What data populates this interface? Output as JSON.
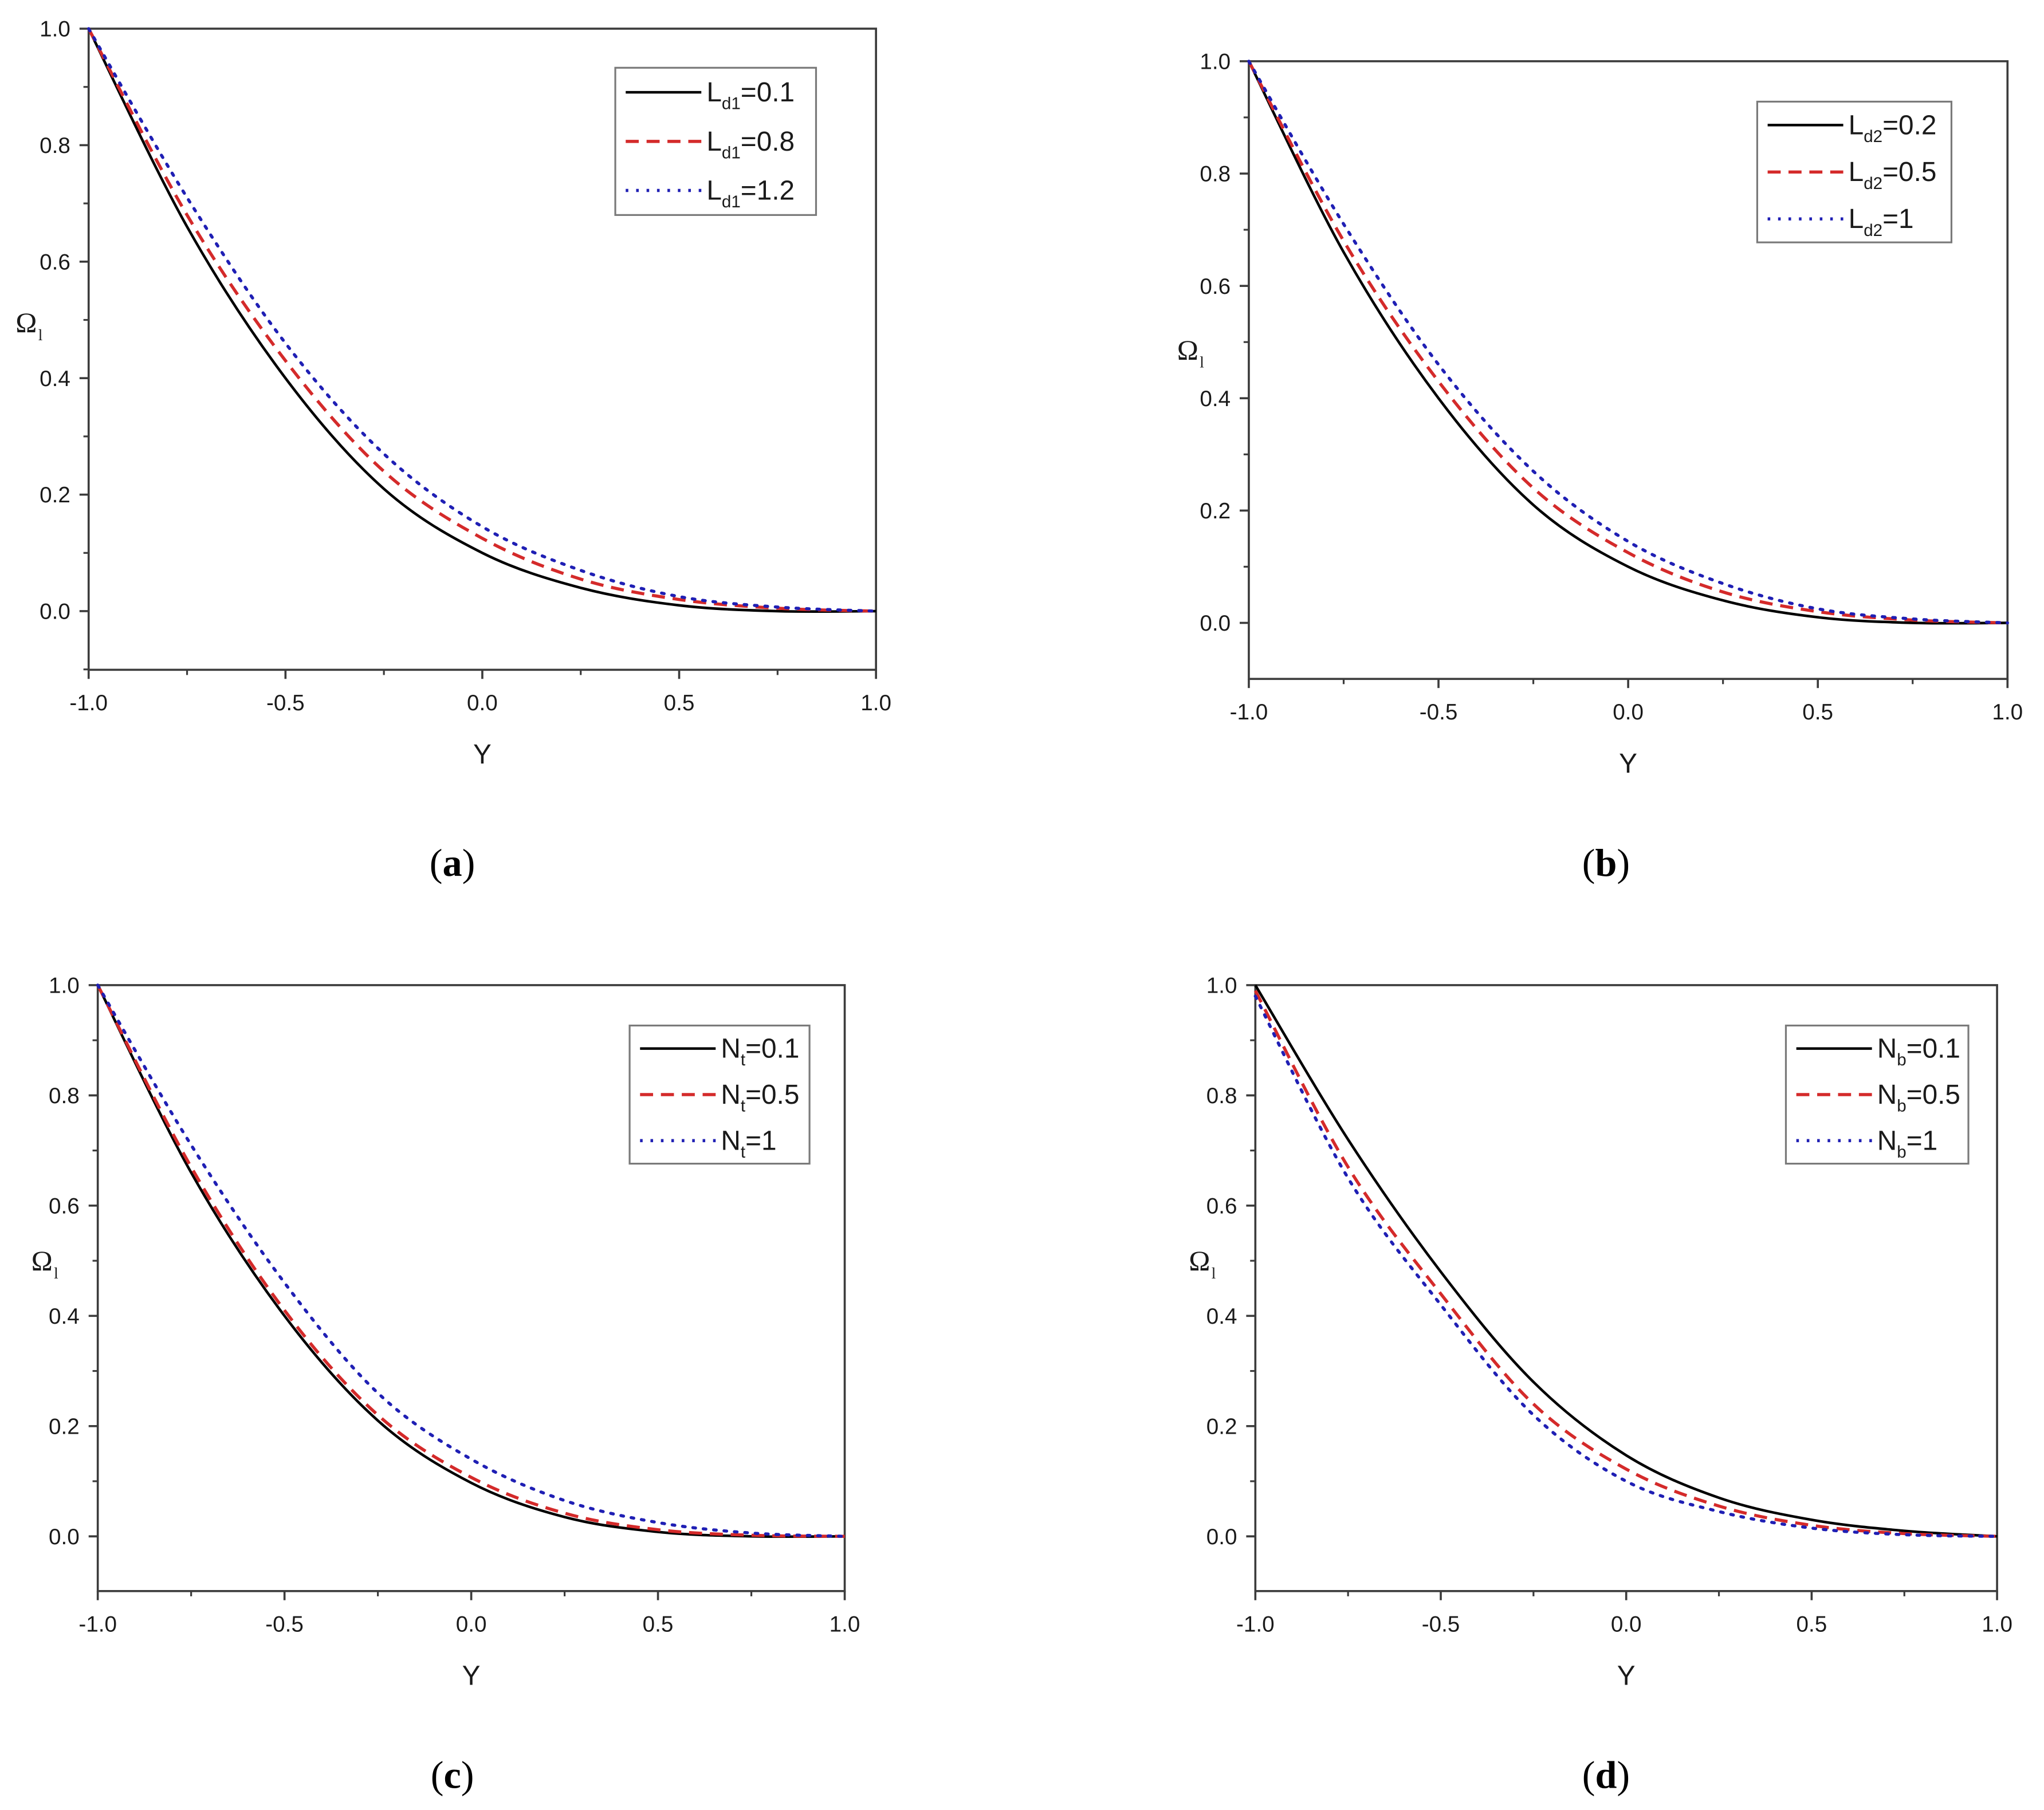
{
  "figure": {
    "panels": [
      {
        "id": "a",
        "caption_letter": "a",
        "xlabel": "Y",
        "ylabel_main": "Ω",
        "ylabel_sub": "l",
        "legend": [
          {
            "base": "L",
            "sub": "d1",
            "value": "=0.1",
            "style": "solid"
          },
          {
            "base": "L",
            "sub": "d1",
            "value": "=0.8",
            "style": "dashed"
          },
          {
            "base": "L",
            "sub": "d1",
            "value": "=1.2",
            "style": "dotted"
          }
        ]
      },
      {
        "id": "b",
        "caption_letter": "b",
        "xlabel": "Y",
        "ylabel_main": "Ω",
        "ylabel_sub": "l",
        "legend": [
          {
            "base": "L",
            "sub": "d2",
            "value": "=0.2",
            "style": "solid"
          },
          {
            "base": "L",
            "sub": "d2",
            "value": "=0.5",
            "style": "dashed"
          },
          {
            "base": "L",
            "sub": "d2",
            "value": "=1",
            "style": "dotted"
          }
        ]
      },
      {
        "id": "c",
        "caption_letter": "c",
        "xlabel": "Y",
        "ylabel_main": "Ω",
        "ylabel_sub": "l",
        "legend": [
          {
            "base": "N",
            "sub": "t",
            "value": "=0.1",
            "style": "solid"
          },
          {
            "base": "N",
            "sub": "t",
            "value": "=0.5",
            "style": "dashed"
          },
          {
            "base": "N",
            "sub": "t",
            "value": "=1",
            "style": "dotted"
          }
        ]
      },
      {
        "id": "d",
        "caption_letter": "d",
        "xlabel": "Y",
        "ylabel_main": "Ω",
        "ylabel_sub": "l",
        "legend": [
          {
            "base": "N",
            "sub": "b",
            "value": "=0.1",
            "style": "solid"
          },
          {
            "base": "N",
            "sub": "b",
            "value": "=0.5",
            "style": "dashed"
          },
          {
            "base": "N",
            "sub": "b",
            "value": "=1",
            "style": "dotted"
          }
        ]
      }
    ],
    "xticks": [
      "-1.0",
      "-0.5",
      "0.0",
      "0.5",
      "1.0"
    ],
    "yticks": [
      "0.0",
      "0.2",
      "0.4",
      "0.6",
      "0.8",
      "1.0"
    ],
    "colors": {
      "solid": "#000000",
      "dashed": "#d42a2a",
      "dotted": "#1f1fb4",
      "axis": "#3c3c3c",
      "legend_border": "#7a7a7a"
    }
  },
  "chart_data": [
    {
      "type": "line",
      "title": "(a)",
      "xlabel": "Y",
      "ylabel": "Ω_l",
      "xlim": [
        -1.0,
        1.0
      ],
      "ylim": [
        -0.1,
        1.0
      ],
      "grid": false,
      "legend_position": "upper right",
      "x": [
        -1.0,
        -0.75,
        -0.5,
        -0.25,
        0.0,
        0.25,
        0.5,
        0.75,
        1.0
      ],
      "series": [
        {
          "name": "L_d1=0.1",
          "style": "solid",
          "color": "#000000",
          "values": [
            1.0,
            0.66,
            0.4,
            0.21,
            0.1,
            0.04,
            0.01,
            0.0,
            0.0
          ]
        },
        {
          "name": "L_d1=0.8",
          "style": "dashed",
          "color": "#d42a2a",
          "values": [
            1.0,
            0.68,
            0.43,
            0.24,
            0.125,
            0.055,
            0.02,
            0.005,
            0.0
          ]
        },
        {
          "name": "L_d1=1.2",
          "style": "dotted",
          "color": "#1f1fb4",
          "values": [
            1.0,
            0.71,
            0.46,
            0.27,
            0.145,
            0.07,
            0.025,
            0.007,
            0.0
          ]
        }
      ]
    },
    {
      "type": "line",
      "title": "(b)",
      "xlabel": "Y",
      "ylabel": "Ω_l",
      "xlim": [
        -1.0,
        1.0
      ],
      "ylim": [
        -0.1,
        1.0
      ],
      "grid": false,
      "legend_position": "upper right",
      "x": [
        -1.0,
        -0.75,
        -0.5,
        -0.25,
        0.0,
        0.25,
        0.5,
        0.75,
        1.0
      ],
      "series": [
        {
          "name": "L_d2=0.2",
          "style": "solid",
          "color": "#000000",
          "values": [
            1.0,
            0.66,
            0.4,
            0.21,
            0.1,
            0.04,
            0.01,
            0.0,
            0.0
          ]
        },
        {
          "name": "L_d2=0.5",
          "style": "dashed",
          "color": "#d42a2a",
          "values": [
            1.0,
            0.68,
            0.43,
            0.24,
            0.125,
            0.055,
            0.02,
            0.005,
            0.0
          ]
        },
        {
          "name": "L_d2=1",
          "style": "dotted",
          "color": "#1f1fb4",
          "values": [
            1.0,
            0.71,
            0.46,
            0.27,
            0.145,
            0.07,
            0.025,
            0.007,
            0.0
          ]
        }
      ]
    },
    {
      "type": "line",
      "title": "(c)",
      "xlabel": "Y",
      "ylabel": "Ω_l",
      "xlim": [
        -1.0,
        1.0
      ],
      "ylim": [
        -0.1,
        1.0
      ],
      "grid": false,
      "legend_position": "upper right",
      "x": [
        -1.0,
        -0.75,
        -0.5,
        -0.25,
        0.0,
        0.25,
        0.5,
        0.75,
        1.0
      ],
      "series": [
        {
          "name": "N_t=0.1",
          "style": "solid",
          "color": "#000000",
          "values": [
            1.0,
            0.66,
            0.4,
            0.21,
            0.097,
            0.035,
            0.008,
            0.0,
            0.0
          ]
        },
        {
          "name": "N_t=0.5",
          "style": "dashed",
          "color": "#d42a2a",
          "values": [
            1.0,
            0.67,
            0.41,
            0.22,
            0.107,
            0.042,
            0.012,
            0.002,
            0.0
          ]
        },
        {
          "name": "N_t=1",
          "style": "dotted",
          "color": "#1f1fb4",
          "values": [
            1.0,
            0.71,
            0.46,
            0.26,
            0.14,
            0.065,
            0.025,
            0.006,
            0.0
          ]
        }
      ]
    },
    {
      "type": "line",
      "title": "(d)",
      "xlabel": "Y",
      "ylabel": "Ω_l",
      "xlim": [
        -1.0,
        1.0
      ],
      "ylim": [
        -0.1,
        1.0
      ],
      "grid": false,
      "legend_position": "upper right",
      "x": [
        -1.0,
        -0.75,
        -0.5,
        -0.25,
        0.0,
        0.25,
        0.5,
        0.75,
        1.0
      ],
      "series": [
        {
          "name": "N_b=0.1",
          "style": "solid",
          "color": "#000000",
          "values": [
            1.0,
            0.72,
            0.48,
            0.28,
            0.147,
            0.07,
            0.03,
            0.01,
            0.0
          ]
        },
        {
          "name": "N_b=0.5",
          "style": "dashed",
          "color": "#d42a2a",
          "values": [
            0.99,
            0.67,
            0.44,
            0.24,
            0.122,
            0.055,
            0.02,
            0.005,
            0.0
          ]
        },
        {
          "name": "N_b=1",
          "style": "dotted",
          "color": "#1f1fb4",
          "values": [
            0.98,
            0.65,
            0.42,
            0.22,
            0.1,
            0.045,
            0.015,
            0.003,
            0.0
          ]
        }
      ]
    }
  ]
}
